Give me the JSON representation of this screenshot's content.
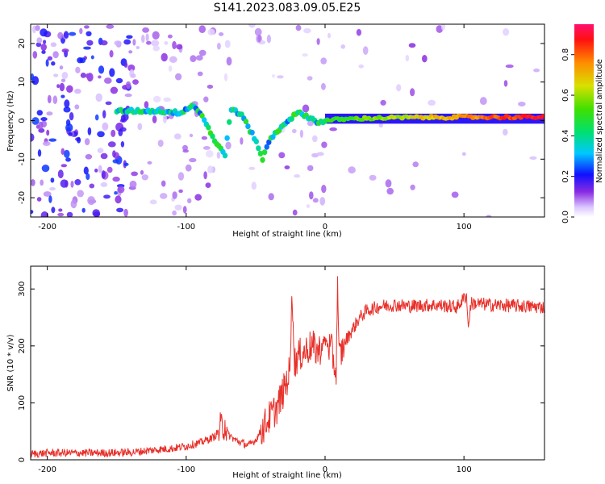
{
  "figure": {
    "title": "S141.2023.083.09.05.E25"
  },
  "chart_data": [
    {
      "type": "heatmap",
      "xlabel": "Height of straight line (km)",
      "ylabel": "Frequency (Hz)",
      "xlim": [
        -212,
        158
      ],
      "ylim": [
        -25,
        25
      ],
      "xticks": [
        -200,
        -100,
        0,
        100
      ],
      "yticks": [
        -20,
        -10,
        0,
        10,
        20
      ],
      "colorbar": {
        "label": "Normalized spectral amplitude",
        "range": [
          0,
          0.95
        ],
        "ticks": [
          0.0,
          0.2,
          0.4,
          0.6,
          0.8
        ]
      },
      "ridge": {
        "x": [
          -135,
          -120,
          -105,
          -95,
          -90,
          -85,
          -80,
          -72,
          -68,
          -60,
          -55,
          -50,
          -45,
          -40,
          -35,
          -30,
          -25,
          -20,
          -15,
          -10,
          -5,
          0,
          10,
          30,
          60,
          100,
          158
        ],
        "y": [
          2.5,
          2.5,
          2.0,
          4.0,
          2.0,
          -1.0,
          -5.0,
          -9.0,
          3.0,
          1.5,
          -2.0,
          -5.0,
          -10.0,
          -5.0,
          -3.0,
          -1.0,
          0.5,
          2.0,
          1.5,
          0.5,
          -0.5,
          0.0,
          0.3,
          0.6,
          0.8,
          0.9,
          0.9
        ]
      }
    },
    {
      "type": "line",
      "xlabel": "Height of straight line (km)",
      "ylabel": "SNR (10 * v/v)",
      "xlim": [
        -212,
        158
      ],
      "ylim": [
        0,
        340
      ],
      "xticks": [
        -200,
        -100,
        0,
        100
      ],
      "yticks": [
        0,
        100,
        200,
        300
      ],
      "color": "#e8302a",
      "series": [
        {
          "x": [
            -212,
            -200,
            -180,
            -160,
            -140,
            -120,
            -110,
            -100,
            -90,
            -80,
            -75,
            -72,
            -70,
            -65,
            -60,
            -55,
            -50,
            -45,
            -40,
            -35,
            -30,
            -25,
            -24,
            -22,
            -20,
            -15,
            -10,
            -5,
            0,
            5,
            8,
            9,
            10,
            12,
            15,
            20,
            25,
            30,
            40,
            50,
            60,
            80,
            95,
            102,
            103,
            105,
            120,
            140,
            158
          ],
          "y": [
            10,
            12,
            12,
            12,
            13,
            18,
            20,
            24,
            30,
            40,
            55,
            65,
            45,
            35,
            30,
            25,
            35,
            55,
            75,
            90,
            120,
            160,
            300,
            170,
            180,
            190,
            200,
            190,
            210,
            190,
            150,
            320,
            180,
            190,
            210,
            230,
            250,
            262,
            270,
            272,
            270,
            272,
            268,
            290,
            230,
            275,
            272,
            270,
            268
          ]
        }
      ]
    }
  ]
}
